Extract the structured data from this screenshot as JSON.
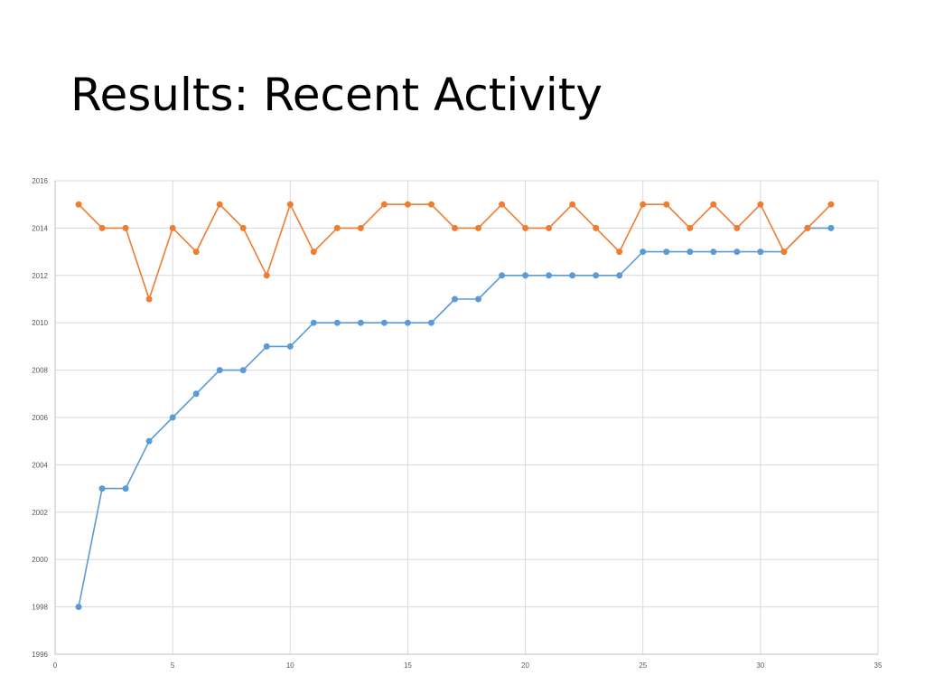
{
  "slide": {
    "title": "Results: Recent Activity"
  },
  "chart_data": {
    "type": "line",
    "title": "",
    "xlabel": "",
    "ylabel": "",
    "xlim": [
      0,
      35
    ],
    "ylim": [
      1996,
      2016
    ],
    "x_ticks": [
      "0",
      "5",
      "10",
      "15",
      "20",
      "25",
      "30",
      "35"
    ],
    "y_ticks": [
      "1996",
      "1998",
      "2000",
      "2002",
      "2004",
      "2006",
      "2008",
      "2010",
      "2012",
      "2014",
      "2016"
    ],
    "grid": true,
    "legend": "none",
    "x": [
      1,
      2,
      3,
      4,
      5,
      6,
      7,
      8,
      9,
      10,
      11,
      12,
      13,
      14,
      15,
      16,
      17,
      18,
      19,
      20,
      21,
      22,
      23,
      24,
      25,
      26,
      27,
      28,
      29,
      30,
      31,
      32,
      33
    ],
    "series": [
      {
        "color": "#5B9BD5",
        "values": [
          1998,
          2003,
          2003,
          2005,
          2006,
          2007,
          2008,
          2008,
          2009,
          2009,
          2010,
          2010,
          2010,
          2010,
          2010,
          2010,
          2011,
          2011,
          2012,
          2012,
          2012,
          2012,
          2012,
          2012,
          2013,
          2013,
          2013,
          2013,
          2013,
          2013,
          2013,
          2014,
          2014
        ]
      },
      {
        "color": "#ED7D31",
        "values": [
          2015,
          2014,
          2014,
          2011,
          2014,
          2013,
          2015,
          2014,
          2012,
          2015,
          2013,
          2014,
          2014,
          2015,
          2015,
          2015,
          2014,
          2014,
          2015,
          2014,
          2014,
          2015,
          2014,
          2013,
          2015,
          2015,
          2014,
          2015,
          2014,
          2015,
          2013,
          2014,
          2015
        ]
      }
    ],
    "colors": {
      "grid": "#D9D9D9",
      "axis": "#BFBFBF",
      "tick_text": "#595959"
    }
  }
}
